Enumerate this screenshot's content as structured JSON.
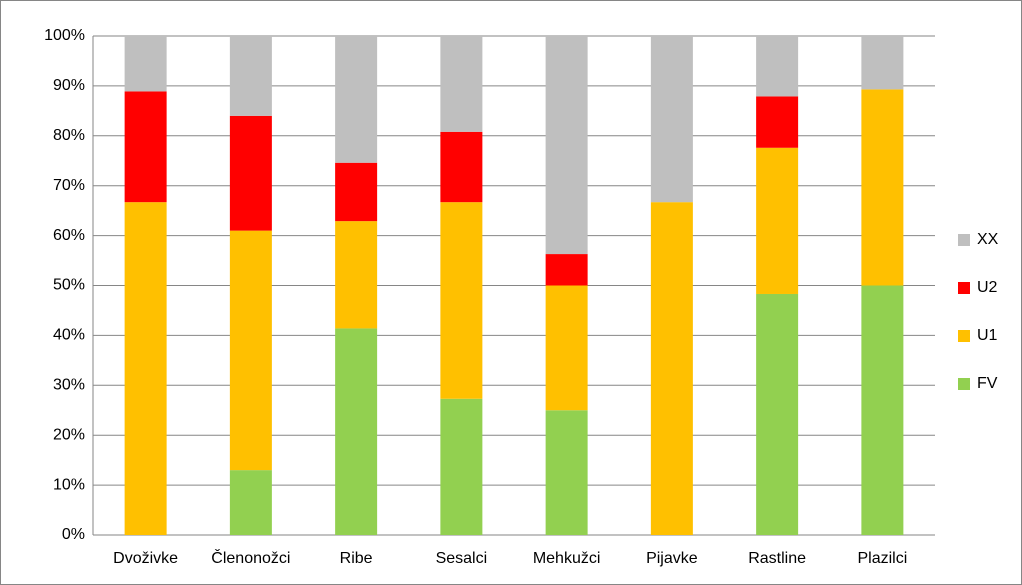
{
  "chart_data": {
    "type": "stacked_bar",
    "categories": [
      "Dvoživke",
      "Členonožci",
      "Ribe",
      "Sesalci",
      "Mehkužci",
      "Pijavke",
      "Rastline",
      "Plazilci"
    ],
    "series": [
      {
        "name": "FV",
        "color": "#92d050",
        "values": [
          0,
          13,
          41.4,
          27.3,
          25,
          0,
          48.3,
          50
        ]
      },
      {
        "name": "U1",
        "color": "#ffc000",
        "values": [
          66.7,
          48,
          21.5,
          39.4,
          25,
          66.7,
          29.3,
          39.3
        ]
      },
      {
        "name": "U2",
        "color": "#ff0000",
        "values": [
          22.2,
          23,
          11.7,
          14.1,
          6.3,
          0,
          10.3,
          0
        ]
      },
      {
        "name": "XX",
        "color": "#bfbfbf",
        "values": [
          11.1,
          16,
          25.4,
          19.2,
          43.7,
          33.3,
          12.1,
          10.7
        ]
      }
    ],
    "ylim": [
      0,
      100
    ],
    "yticks": [
      {
        "value": 0,
        "label": "0%"
      },
      {
        "value": 10,
        "label": "10%"
      },
      {
        "value": 20,
        "label": "20%"
      },
      {
        "value": 30,
        "label": "30%"
      },
      {
        "value": 40,
        "label": "40%"
      },
      {
        "value": 50,
        "label": "50%"
      },
      {
        "value": 60,
        "label": "60%"
      },
      {
        "value": 70,
        "label": "70%"
      },
      {
        "value": 80,
        "label": "80%"
      },
      {
        "value": 90,
        "label": "90%"
      },
      {
        "value": 100,
        "label": "100%"
      }
    ],
    "grid": true,
    "legend": "right"
  }
}
